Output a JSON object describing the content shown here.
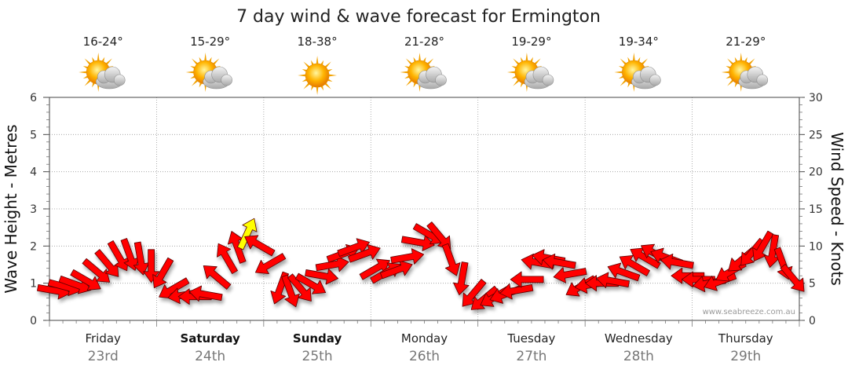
{
  "chart_data": {
    "type": "line",
    "title": "7 day wind & wave forecast for Ermington",
    "y_left": {
      "label": "Wave Height - Metres",
      "range": [
        0,
        6
      ],
      "ticks": [
        "0",
        "1",
        "2",
        "3",
        "4",
        "5",
        "6"
      ]
    },
    "y_right": {
      "label": "Wind Speed - Knots",
      "range": [
        0,
        30
      ],
      "ticks": [
        "0",
        "5",
        "10",
        "15",
        "20",
        "25",
        "30"
      ]
    },
    "days": [
      {
        "name": "Friday",
        "date": "23rd",
        "temp": "16-24°",
        "icon": "sun-cloud-icon",
        "bold": false
      },
      {
        "name": "Saturday",
        "date": "24th",
        "temp": "15-29°",
        "icon": "sun-cloud-icon",
        "bold": true
      },
      {
        "name": "Sunday",
        "date": "25th",
        "temp": "18-38°",
        "icon": "sun-icon",
        "bold": true
      },
      {
        "name": "Monday",
        "date": "26th",
        "temp": "21-28°",
        "icon": "sun-cloud-icon",
        "bold": false
      },
      {
        "name": "Tuesday",
        "date": "27th",
        "temp": "19-29°",
        "icon": "sun-cloud-icon",
        "bold": false
      },
      {
        "name": "Wednesday",
        "date": "28th",
        "temp": "19-34°",
        "icon": "sun-cloud-icon",
        "bold": false
      },
      {
        "name": "Thursday",
        "date": "29th",
        "temp": "21-29°",
        "icon": "sun-cloud-icon",
        "bold": false
      }
    ],
    "wind_series": {
      "name": "",
      "color": "#ff0000",
      "highlight_color": "#ffff00",
      "points": [
        {
          "t": 0.05,
          "knots": 4.0,
          "dir": 280
        },
        {
          "t": 0.15,
          "knots": 4.5,
          "dir": 285
        },
        {
          "t": 0.25,
          "knots": 4.8,
          "dir": 290
        },
        {
          "t": 0.35,
          "knots": 5.3,
          "dir": 300
        },
        {
          "t": 0.45,
          "knots": 6.5,
          "dir": 310
        },
        {
          "t": 0.55,
          "knots": 7.5,
          "dir": 320
        },
        {
          "t": 0.65,
          "knots": 8.5,
          "dir": 330
        },
        {
          "t": 0.75,
          "knots": 8.7,
          "dir": 340
        },
        {
          "t": 0.85,
          "knots": 8.2,
          "dir": 350
        },
        {
          "t": 0.95,
          "knots": 7.2,
          "dir": 0
        },
        {
          "t": 1.05,
          "knots": 6.2,
          "dir": 30
        },
        {
          "t": 1.15,
          "knots": 4.2,
          "dir": 60
        },
        {
          "t": 1.25,
          "knots": 3.4,
          "dir": 80
        },
        {
          "t": 1.35,
          "knots": 3.2,
          "dir": 90
        },
        {
          "t": 1.45,
          "knots": 3.5,
          "dir": 100
        },
        {
          "t": 1.55,
          "knots": 6.0,
          "dir": 130
        },
        {
          "t": 1.65,
          "knots": 8.5,
          "dir": 150
        },
        {
          "t": 1.75,
          "knots": 10.0,
          "dir": 160
        },
        {
          "t": 1.85,
          "knots": 11.8,
          "dir": 205
        },
        {
          "t": 1.95,
          "knots": 10.2,
          "dir": 120
        },
        {
          "t": 2.05,
          "knots": 7.5,
          "dir": 60
        },
        {
          "t": 2.15,
          "knots": 4.2,
          "dir": 20
        },
        {
          "t": 2.25,
          "knots": 3.8,
          "dir": 340
        },
        {
          "t": 2.35,
          "knots": 4.2,
          "dir": 320
        },
        {
          "t": 2.45,
          "knots": 4.8,
          "dir": 300
        },
        {
          "t": 2.55,
          "knots": 6.0,
          "dir": 280
        },
        {
          "t": 2.65,
          "knots": 7.5,
          "dir": 260
        },
        {
          "t": 2.75,
          "knots": 9.0,
          "dir": 250
        },
        {
          "t": 2.85,
          "knots": 9.8,
          "dir": 250
        },
        {
          "t": 2.95,
          "knots": 9.0,
          "dir": 250
        },
        {
          "t": 3.05,
          "knots": 7.0,
          "dir": 240
        },
        {
          "t": 3.15,
          "knots": 6.5,
          "dir": 240
        },
        {
          "t": 3.25,
          "knots": 6.8,
          "dir": 250
        },
        {
          "t": 3.35,
          "knots": 8.5,
          "dir": 260
        },
        {
          "t": 3.45,
          "knots": 10.5,
          "dir": 280
        },
        {
          "t": 3.55,
          "knots": 11.5,
          "dir": 300
        },
        {
          "t": 3.65,
          "knots": 11.2,
          "dir": 320
        },
        {
          "t": 3.75,
          "knots": 8.0,
          "dir": 340
        },
        {
          "t": 3.85,
          "knots": 5.5,
          "dir": 10
        },
        {
          "t": 3.95,
          "knots": 3.5,
          "dir": 40
        },
        {
          "t": 4.05,
          "knots": 2.8,
          "dir": 50
        },
        {
          "t": 4.15,
          "knots": 3.1,
          "dir": 60
        },
        {
          "t": 4.25,
          "knots": 3.5,
          "dir": 70
        },
        {
          "t": 4.35,
          "knots": 4.0,
          "dir": 80
        },
        {
          "t": 4.45,
          "knots": 5.5,
          "dir": 90
        },
        {
          "t": 4.55,
          "knots": 7.8,
          "dir": 100
        },
        {
          "t": 4.65,
          "knots": 8.4,
          "dir": 100
        },
        {
          "t": 4.75,
          "knots": 7.8,
          "dir": 100
        },
        {
          "t": 4.85,
          "knots": 6.2,
          "dir": 80
        },
        {
          "t": 4.95,
          "knots": 4.5,
          "dir": 60
        },
        {
          "t": 5.05,
          "knots": 4.8,
          "dir": 80
        },
        {
          "t": 5.15,
          "knots": 5.0,
          "dir": 90
        },
        {
          "t": 5.25,
          "knots": 5.3,
          "dir": 100
        },
        {
          "t": 5.35,
          "knots": 6.5,
          "dir": 110
        },
        {
          "t": 5.45,
          "knots": 7.5,
          "dir": 120
        },
        {
          "t": 5.55,
          "knots": 8.5,
          "dir": 120
        },
        {
          "t": 5.65,
          "knots": 9.0,
          "dir": 120
        },
        {
          "t": 5.75,
          "knots": 8.5,
          "dir": 110
        },
        {
          "t": 5.85,
          "knots": 7.8,
          "dir": 100
        },
        {
          "t": 5.95,
          "knots": 6.0,
          "dir": 90
        },
        {
          "t": 6.05,
          "knots": 5.5,
          "dir": 90
        },
        {
          "t": 6.15,
          "knots": 5.0,
          "dir": 80
        },
        {
          "t": 6.25,
          "knots": 5.2,
          "dir": 70
        },
        {
          "t": 6.35,
          "knots": 6.5,
          "dir": 60
        },
        {
          "t": 6.45,
          "knots": 8.0,
          "dir": 50
        },
        {
          "t": 6.55,
          "knots": 9.0,
          "dir": 40
        },
        {
          "t": 6.65,
          "knots": 9.8,
          "dir": 30
        },
        {
          "t": 6.75,
          "knots": 9.2,
          "dir": 10
        },
        {
          "t": 6.85,
          "knots": 7.5,
          "dir": 340
        },
        {
          "t": 6.95,
          "knots": 5.5,
          "dir": 320
        }
      ]
    },
    "watermark": "www.seabreeze.com.au",
    "grid": true,
    "legend": "none"
  }
}
